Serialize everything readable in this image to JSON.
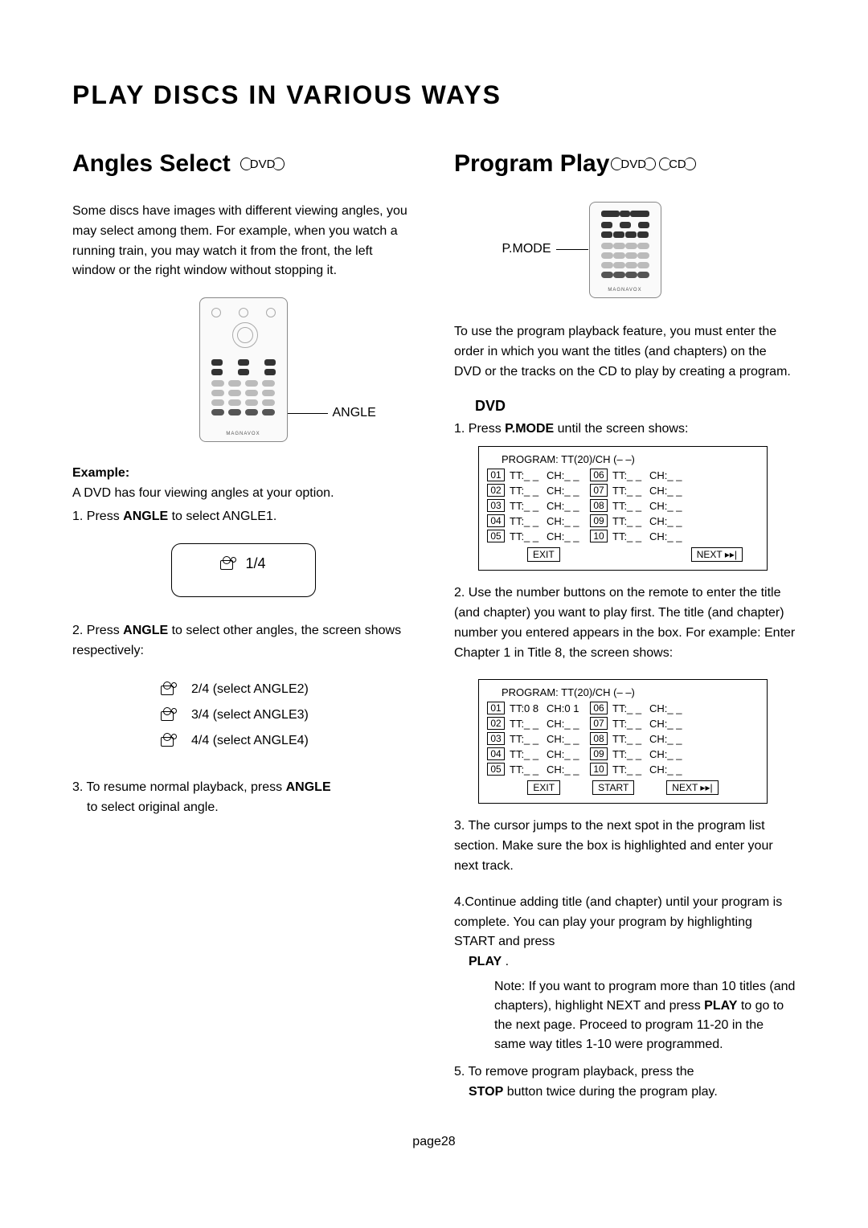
{
  "main_title": "PLAY DISCS IN VARIOUS WAYS",
  "page_number_label": "page28",
  "left": {
    "title": "Angles Select",
    "disc_labels": [
      "DVD"
    ],
    "intro": "Some discs have images with different viewing angles, you may select among them. For example, when you watch a running train, you may watch it from the front, the left window or the right window without stopping it.",
    "remote_callout": "ANGLE",
    "remote_brand": "MAGNAVOX",
    "example_label": "Example:",
    "example_line": "A DVD has four viewing angles at your option.",
    "step1": "1. Press  ",
    "step1_bold": "ANGLE",
    "step1_end": "  to select ANGLE1.",
    "osd_value": "1/4",
    "step2": "2. Press  ",
    "step2_bold": "ANGLE",
    "step2_end": "  to select other angles, the screen shows respectively:",
    "angle_rows": [
      "2/4 (select ANGLE2)",
      "3/4 (select ANGLE3)",
      "4/4 (select ANGLE4)"
    ],
    "step3": "3. To resume normal playback, press  ",
    "step3_bold": "ANGLE",
    "step3_end": " to select original angle."
  },
  "right": {
    "title": "Program Play",
    "disc_labels": [
      "DVD",
      "CD"
    ],
    "remote_callout": "P.MODE",
    "remote_brand": "MAGNAVOX",
    "intro": "To use the program playback feature, you must enter the order in which you want the titles (and chapters) on the DVD or the tracks on the CD to play by creating a program.",
    "dvd_heading": "DVD",
    "step1_a": "1. Press  ",
    "step1_bold": "P.MODE",
    "step1_b": "  until the screen shows:",
    "program1": {
      "title": "PROGRAM: TT(20)/CH (– –)",
      "rows": [
        {
          "n1": "01",
          "t1": "TT:_ _",
          "c1": "CH:_ _",
          "n2": "06",
          "t2": "TT:_ _",
          "c2": "CH:_ _"
        },
        {
          "n1": "02",
          "t1": "TT:_ _",
          "c1": "CH:_ _",
          "n2": "07",
          "t2": "TT:_ _",
          "c2": "CH:_ _"
        },
        {
          "n1": "03",
          "t1": "TT:_ _",
          "c1": "CH:_ _",
          "n2": "08",
          "t2": "TT:_ _",
          "c2": "CH:_ _"
        },
        {
          "n1": "04",
          "t1": "TT:_ _",
          "c1": "CH:_ _",
          "n2": "09",
          "t2": "TT:_ _",
          "c2": "CH:_ _"
        },
        {
          "n1": "05",
          "t1": "TT:_ _",
          "c1": "CH:_ _",
          "n2": "10",
          "t2": "TT:_ _",
          "c2": "CH:_ _"
        }
      ],
      "buttons": [
        "EXIT",
        "NEXT ▸▸|"
      ]
    },
    "step2": "2. Use the number buttons on the remote to enter the title (and chapter) you want to play first. The title (and chapter) number you entered appears in the box. For example: Enter Chapter 1 in Title 8, the screen shows:",
    "program2": {
      "title": "PROGRAM: TT(20)/CH (– –)",
      "rows": [
        {
          "n1": "01",
          "t1": "TT:0 8",
          "c1": "CH:0 1",
          "n2": "06",
          "t2": "TT:_ _",
          "c2": "CH:_ _"
        },
        {
          "n1": "02",
          "t1": "TT:_ _",
          "c1": "CH:_ _",
          "n2": "07",
          "t2": "TT:_ _",
          "c2": "CH:_ _"
        },
        {
          "n1": "03",
          "t1": "TT:_ _",
          "c1": "CH:_ _",
          "n2": "08",
          "t2": "TT:_ _",
          "c2": "CH:_ _"
        },
        {
          "n1": "04",
          "t1": "TT:_ _",
          "c1": "CH:_ _",
          "n2": "09",
          "t2": "TT:_ _",
          "c2": "CH:_ _"
        },
        {
          "n1": "05",
          "t1": "TT:_ _",
          "c1": "CH:_ _",
          "n2": "10",
          "t2": "TT:_ _",
          "c2": "CH:_ _"
        }
      ],
      "buttons": [
        "EXIT",
        "START",
        "NEXT ▸▸|"
      ]
    },
    "step3": "3. The cursor jumps to the next spot in the program list section. Make sure the box is highlighted and enter your next track.",
    "step4_a": "4.Continue adding title (and chapter) until your program is complete. You can play your program by highlighting START and press ",
    "step4_bold": "PLAY",
    "step4_b": " .",
    "note_label": "Note: ",
    "note_a": "If you want to program more than 10 titles (and chapters), highlight NEXT and press  ",
    "note_bold": "PLAY",
    "note_b": "  to go to the next page. Proceed to program 11-20 in the same way titles 1-10 were programmed.",
    "step5_a": "5. To remove program playback, press the ",
    "step5_bold": "STOP",
    "step5_b": "  button twice during the program play."
  }
}
